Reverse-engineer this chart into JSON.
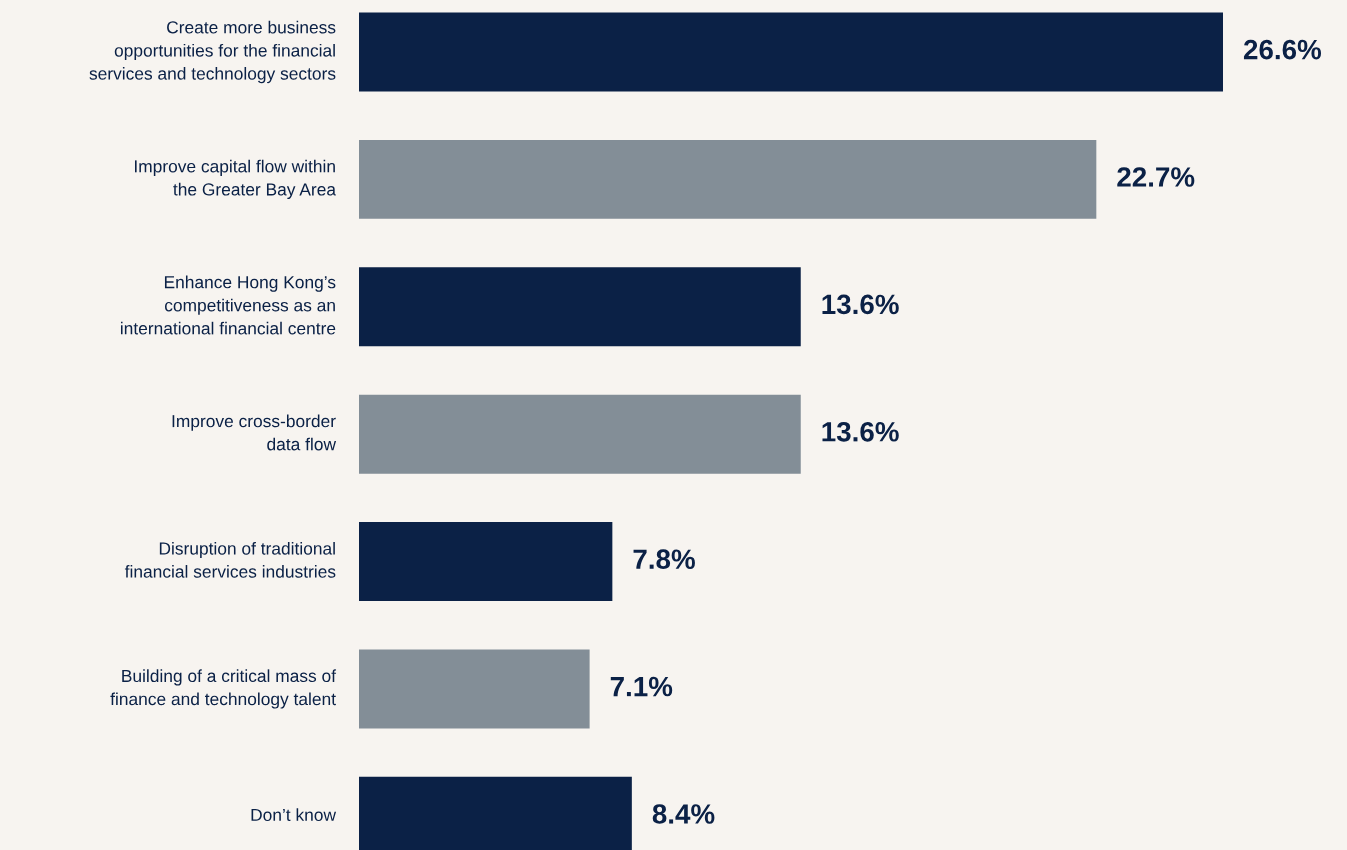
{
  "chart_data": {
    "type": "bar",
    "orientation": "horizontal",
    "categories": [
      "Create more business\nopportunities for the financial\nservices and technology sectors",
      "Improve capital flow within\nthe Greater Bay Area",
      "Enhance Hong Kong’s\ncompetitiveness as an\ninternational financial centre",
      "Improve cross-border\ndata flow",
      "Disruption of traditional\nfinancial services industries",
      "Building of a critical mass of\nfinance and technology talent",
      "Don’t know"
    ],
    "values": [
      26.6,
      22.7,
      13.6,
      13.6,
      7.8,
      7.1,
      8.4
    ],
    "colors": [
      "#0b2146",
      "#838e97",
      "#0b2146",
      "#838e97",
      "#0b2146",
      "#838e97",
      "#0b2146"
    ],
    "value_labels": [
      "26.6%",
      "22.7%",
      "13.6%",
      "13.6%",
      "7.8%",
      "7.1%",
      "8.4%"
    ],
    "legend": false
  }
}
